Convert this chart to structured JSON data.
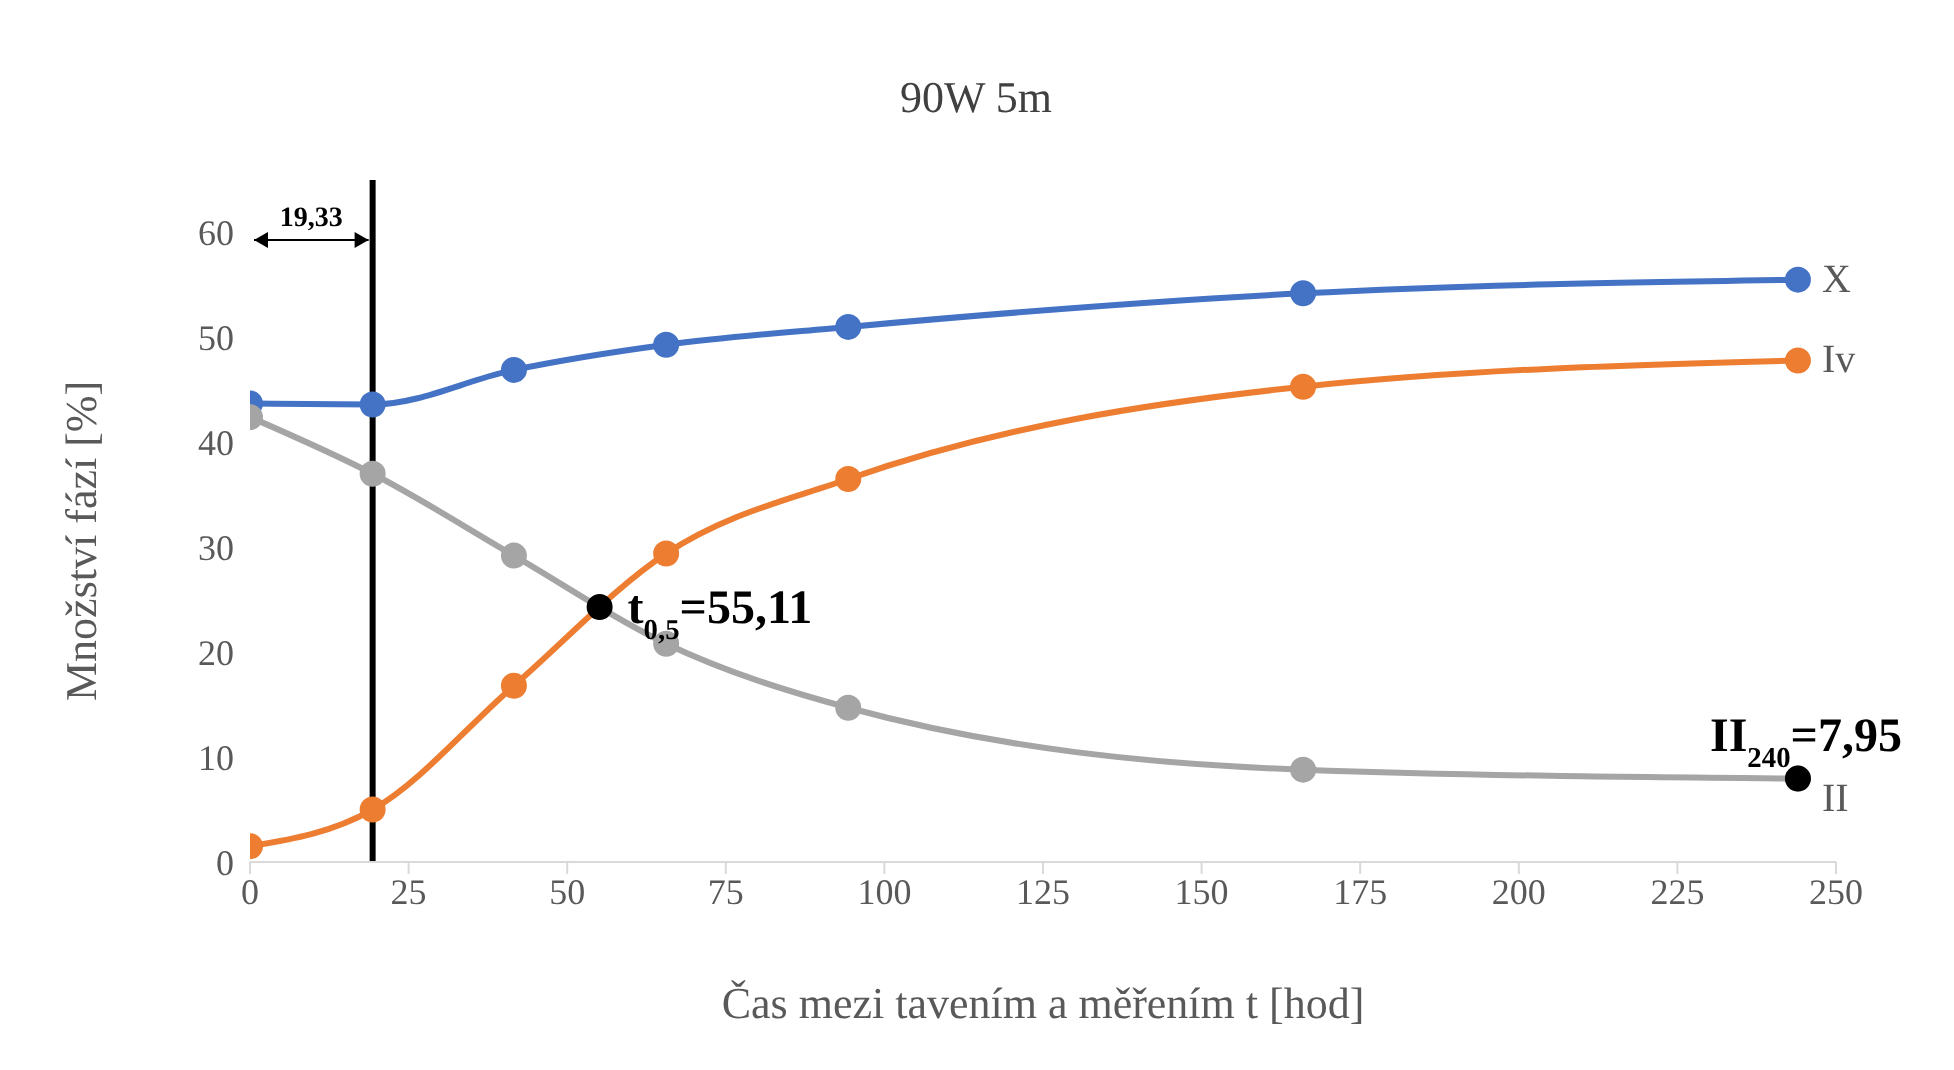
{
  "chart_data": {
    "type": "line",
    "title": "90W 5m",
    "xlabel": "Čas mezi tavením a měřením t [hod]",
    "ylabel": "Množství fází [%]",
    "x": [
      0,
      19.33,
      41.6,
      65.6,
      94.3,
      166,
      244
    ],
    "series": [
      {
        "name": "X",
        "color": "#4472c4",
        "values": [
          43.7,
          43.6,
          46.9,
          49.3,
          51,
          54.2,
          55.5
        ]
      },
      {
        "name": "Iv",
        "color": "#ed7d31",
        "values": [
          1.5,
          5,
          16.8,
          29.4,
          36.5,
          45.3,
          47.8
        ]
      },
      {
        "name": "II",
        "color": "#a5a5a5",
        "values": [
          42.4,
          37,
          29.2,
          20.8,
          14.7,
          8.8,
          7.95
        ]
      }
    ],
    "xlim": [
      0,
      250
    ],
    "xticks": [
      0,
      25,
      50,
      75,
      100,
      125,
      150,
      175,
      200,
      225,
      250
    ],
    "ylim": [
      0,
      65
    ],
    "yticks": [
      0,
      10,
      20,
      30,
      40,
      50,
      60
    ],
    "grid": false,
    "legend": false,
    "marker": "circle",
    "line_style": "solid",
    "ref_lines": [
      {
        "axis": "x",
        "value": 19.33,
        "label": "19,33",
        "color": "#000000"
      }
    ],
    "annotations": [
      {
        "text": "t$_{0,5}$=55,11",
        "x": 55.11,
        "y": 24.3
      },
      {
        "text": "II$_{240}$=7,95",
        "x": 244,
        "y": 7.95
      }
    ]
  }
}
